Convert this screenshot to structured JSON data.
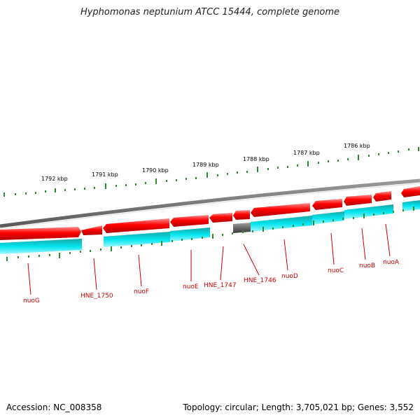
{
  "title": "Hyphomonas neptunium ATCC 15444, complete genome",
  "footer": {
    "accession": "Accession: NC_008358",
    "stats": "Topology: circular; Length: 3,705,021 bp; Genes: 3,552"
  },
  "ruler": {
    "ticks": [
      "1786 kbp",
      "1787 kbp",
      "1788 kbp",
      "1789 kbp",
      "1790 kbp",
      "1791 kbp",
      "1792 kbp"
    ]
  },
  "genes": [
    {
      "name": "nuoA"
    },
    {
      "name": "nuoB"
    },
    {
      "name": "nuoC"
    },
    {
      "name": "nuoD"
    },
    {
      "name": "HNE_1746"
    },
    {
      "name": "HNE_1747"
    },
    {
      "name": "nuoE"
    },
    {
      "name": "nuoF"
    },
    {
      "name": "HNE_1750"
    },
    {
      "name": "nuoG"
    }
  ],
  "colors": {
    "strand_forward": "#ff0000",
    "cds": "#00e5ee",
    "pseudogene": "#707070",
    "backbone": "#808080",
    "ruler": "#2e8b2e",
    "label": "#cc0000"
  }
}
